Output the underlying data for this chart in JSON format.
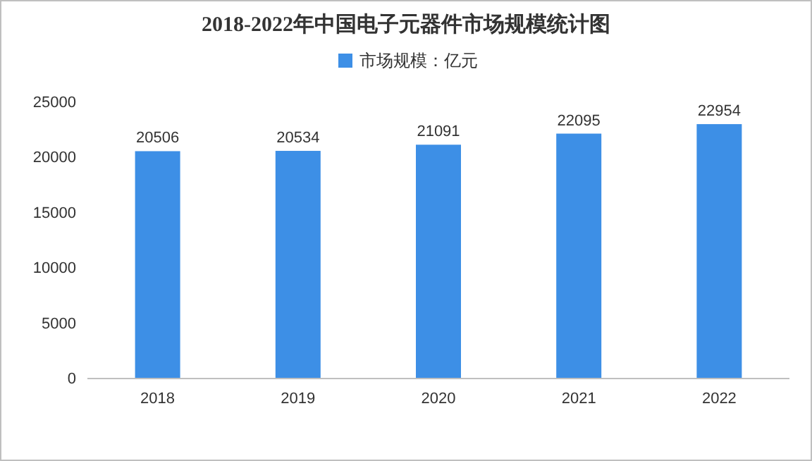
{
  "chart_data": {
    "type": "bar",
    "title": "2018-2022年中国电子元器件市场规模统计图",
    "categories": [
      "2018",
      "2019",
      "2020",
      "2021",
      "2022"
    ],
    "series": [
      {
        "name": "市场规模：亿元",
        "color": "#3d8fe6",
        "values": [
          20506,
          20534,
          21091,
          22095,
          22954
        ]
      }
    ],
    "ylim": [
      0,
      25000
    ],
    "yticks": [
      0,
      5000,
      10000,
      15000,
      20000,
      25000
    ],
    "data_labels": true,
    "legend": "top"
  }
}
